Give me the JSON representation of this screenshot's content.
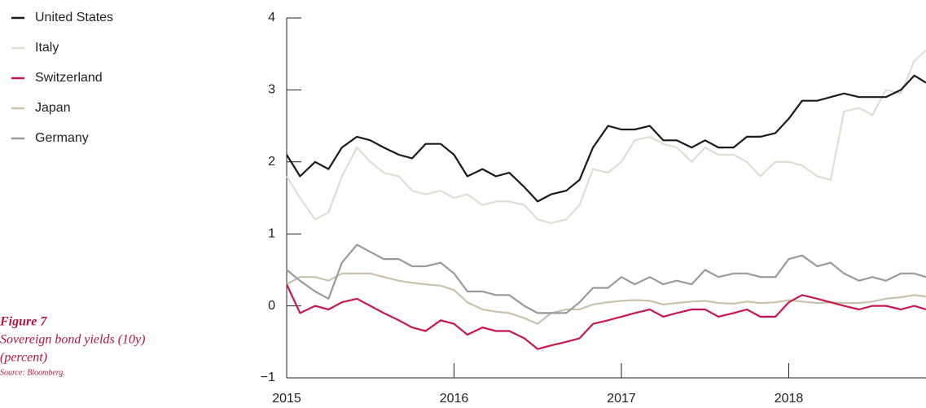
{
  "chart_data": {
    "type": "line",
    "annotations": {
      "figure": "Figure 7",
      "caption": "Sovereign bond yields (10y)",
      "unit": "(percent)",
      "source": "Source: Bloomberg."
    },
    "x": [
      2015,
      2015.08,
      2015.17,
      2015.25,
      2015.33,
      2015.42,
      2015.5,
      2015.58,
      2015.67,
      2015.75,
      2015.83,
      2015.92,
      2016,
      2016.08,
      2016.17,
      2016.25,
      2016.33,
      2016.42,
      2016.5,
      2016.58,
      2016.67,
      2016.75,
      2016.83,
      2016.92,
      2017,
      2017.08,
      2017.17,
      2017.25,
      2017.33,
      2017.42,
      2017.5,
      2017.58,
      2017.67,
      2017.75,
      2017.83,
      2017.92,
      2018,
      2018.08,
      2018.17,
      2018.25,
      2018.33,
      2018.42,
      2018.5,
      2018.58,
      2018.67,
      2018.75,
      2018.82
    ],
    "series": [
      {
        "name": "United States",
        "color": "#1a1a1a",
        "values": [
          2.1,
          1.8,
          2.0,
          1.9,
          2.2,
          2.35,
          2.3,
          2.2,
          2.1,
          2.05,
          2.25,
          2.25,
          2.1,
          1.8,
          1.9,
          1.8,
          1.85,
          1.65,
          1.45,
          1.55,
          1.6,
          1.75,
          2.2,
          2.5,
          2.45,
          2.45,
          2.5,
          2.3,
          2.3,
          2.2,
          2.3,
          2.2,
          2.2,
          2.35,
          2.35,
          2.4,
          2.6,
          2.85,
          2.85,
          2.9,
          2.95,
          2.9,
          2.9,
          2.9,
          3.0,
          3.2,
          3.1
        ]
      },
      {
        "name": "Italy",
        "color": "#e0ddd3",
        "values": [
          1.8,
          1.5,
          1.2,
          1.3,
          1.8,
          2.2,
          2.0,
          1.85,
          1.8,
          1.6,
          1.55,
          1.6,
          1.5,
          1.55,
          1.4,
          1.45,
          1.45,
          1.4,
          1.2,
          1.15,
          1.2,
          1.4,
          1.9,
          1.85,
          2.0,
          2.3,
          2.35,
          2.25,
          2.2,
          2.0,
          2.2,
          2.1,
          2.1,
          2.0,
          1.8,
          2.0,
          2.0,
          1.95,
          1.8,
          1.75,
          2.7,
          2.75,
          2.65,
          3.0,
          2.95,
          3.4,
          3.55
        ]
      },
      {
        "name": "Switzerland",
        "color": "#c8174a",
        "values": [
          0.3,
          -0.1,
          0.0,
          -0.05,
          0.05,
          0.1,
          0.0,
          -0.1,
          -0.2,
          -0.3,
          -0.35,
          -0.2,
          -0.25,
          -0.4,
          -0.3,
          -0.35,
          -0.35,
          -0.45,
          -0.6,
          -0.55,
          -0.5,
          -0.45,
          -0.25,
          -0.2,
          -0.15,
          -0.1,
          -0.05,
          -0.15,
          -0.1,
          -0.05,
          -0.05,
          -0.15,
          -0.1,
          -0.05,
          -0.15,
          -0.15,
          0.05,
          0.15,
          0.1,
          0.05,
          0.0,
          -0.05,
          0.0,
          0.0,
          -0.05,
          0.0,
          -0.05
        ]
      },
      {
        "name": "Japan",
        "color": "#c8c2ad",
        "values": [
          0.3,
          0.4,
          0.4,
          0.35,
          0.45,
          0.45,
          0.45,
          0.4,
          0.35,
          0.32,
          0.3,
          0.28,
          0.22,
          0.05,
          -0.05,
          -0.08,
          -0.1,
          -0.17,
          -0.25,
          -0.1,
          -0.05,
          -0.05,
          0.02,
          0.05,
          0.07,
          0.08,
          0.07,
          0.02,
          0.04,
          0.06,
          0.07,
          0.04,
          0.03,
          0.06,
          0.04,
          0.05,
          0.08,
          0.06,
          0.04,
          0.05,
          0.04,
          0.04,
          0.06,
          0.1,
          0.12,
          0.15,
          0.13
        ]
      },
      {
        "name": "Germany",
        "color": "#9a9a9c",
        "values": [
          0.5,
          0.35,
          0.2,
          0.1,
          0.6,
          0.85,
          0.75,
          0.65,
          0.65,
          0.55,
          0.55,
          0.6,
          0.45,
          0.2,
          0.2,
          0.15,
          0.15,
          0.0,
          -0.1,
          -0.1,
          -0.1,
          0.05,
          0.25,
          0.25,
          0.4,
          0.3,
          0.4,
          0.3,
          0.35,
          0.3,
          0.5,
          0.4,
          0.45,
          0.45,
          0.4,
          0.4,
          0.65,
          0.7,
          0.55,
          0.6,
          0.45,
          0.35,
          0.4,
          0.35,
          0.45,
          0.45,
          0.4
        ]
      }
    ],
    "xlim": [
      2015,
      2018.82
    ],
    "xticks": [
      2015,
      2016,
      2017,
      2018
    ],
    "ylim": [
      -1,
      4
    ],
    "yticks": [
      {
        "value": -1,
        "label": "−1"
      },
      0,
      1,
      2,
      3,
      4
    ],
    "draw_order": [
      "Italy",
      "Japan",
      "Germany",
      "Switzerland",
      "United States"
    ]
  }
}
